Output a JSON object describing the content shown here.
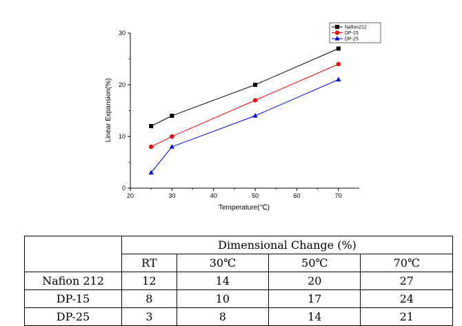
{
  "chart_data": {
    "type": "line",
    "title": "",
    "xlabel": "Temperature(℃)",
    "ylabel": "Linear Expansion(%)",
    "xlim": [
      20,
      75
    ],
    "ylim": [
      0,
      30
    ],
    "x_ticks": [
      "20",
      "30",
      "40",
      "50",
      "60",
      "70"
    ],
    "y_ticks": [
      "0",
      "10",
      "20",
      "30"
    ],
    "legend_position": "top-right",
    "x": [
      25,
      30,
      50,
      70
    ],
    "series": [
      {
        "name": "Nafion212",
        "values": [
          12,
          14,
          20,
          27
        ],
        "color": "#000000",
        "marker": "square"
      },
      {
        "name": "DP-15",
        "values": [
          8,
          10,
          17,
          24
        ],
        "color": "#ff0000",
        "marker": "circle"
      },
      {
        "name": "DP-25",
        "values": [
          3,
          8,
          14,
          21
        ],
        "color": "#0000ff",
        "marker": "triangle"
      }
    ]
  },
  "table": {
    "group_header": "Dimensional Change (%)",
    "columns": [
      "RT",
      "30℃",
      "50℃",
      "70℃"
    ],
    "rows": [
      {
        "label": "Nafion 212",
        "values": [
          "12",
          "14",
          "20",
          "27"
        ]
      },
      {
        "label": "DP-15",
        "values": [
          "8",
          "10",
          "17",
          "24"
        ]
      },
      {
        "label": "DP-25",
        "values": [
          "3",
          "8",
          "14",
          "21"
        ]
      }
    ]
  }
}
